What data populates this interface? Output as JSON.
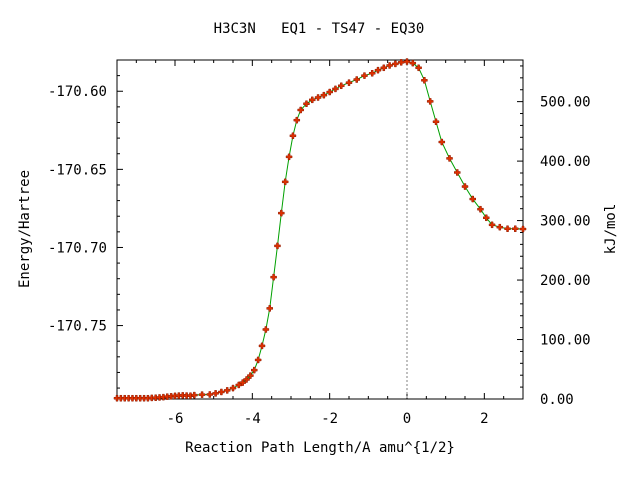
{
  "chart_data": {
    "type": "line",
    "title": "H3C3N   EQ1 - TS47 - EQ30",
    "xlabel": "Reaction Path Length/A amu^{1/2}",
    "ylabel": "Energy/Hartree",
    "y2label": "kJ/mol",
    "xlim": [
      -7.5,
      3.0
    ],
    "ylim": [
      -170.797,
      -170.58
    ],
    "y2lim": [
      0,
      570
    ],
    "x_ticks": [
      -6,
      -4,
      -2,
      0,
      2
    ],
    "x_tick_labels": [
      "-6",
      "-4",
      "-2",
      "0",
      "2"
    ],
    "y_ticks": [
      -170.6,
      -170.65,
      -170.7,
      -170.75
    ],
    "y_tick_labels": [
      "-170.60",
      "-170.65",
      "-170.70",
      "-170.75"
    ],
    "y2_ticks": [
      0,
      100,
      200,
      300,
      400,
      500
    ],
    "y2_tick_labels": [
      "0.00",
      "100.00",
      "200.00",
      "300.00",
      "400.00",
      "500.00"
    ],
    "ts_marker_x": 0,
    "colors": {
      "line": "#00a000",
      "marker": "#e03000",
      "ts_line": "#808080"
    },
    "series": [
      {
        "x": [
          -7.5,
          -7.4,
          -7.3,
          -7.2,
          -7.1,
          -7.0,
          -6.9,
          -6.8,
          -6.7,
          -6.6,
          -6.5,
          -6.4,
          -6.3,
          -6.2,
          -6.1,
          -6.0,
          -5.9,
          -5.8,
          -5.7,
          -5.6,
          -5.5,
          -5.3,
          -5.1,
          -4.95,
          -4.8,
          -4.65,
          -4.5,
          -4.35,
          -4.25,
          -4.15,
          -4.05,
          -3.95,
          -3.85,
          -3.75,
          -3.65,
          -3.55,
          -3.45,
          -3.35,
          -3.25,
          -3.15,
          -3.05,
          -2.95,
          -2.85,
          -2.75,
          -2.6,
          -2.45,
          -2.3,
          -2.15,
          -2.0,
          -1.85,
          -1.7,
          -1.5,
          -1.3,
          -1.1,
          -0.9,
          -0.75,
          -0.6,
          -0.45,
          -0.3,
          -0.15,
          0.0,
          0.15,
          0.3,
          0.45,
          0.6,
          0.75,
          0.9,
          1.1,
          1.3,
          1.5,
          1.7,
          1.9,
          2.05,
          2.2,
          2.4,
          2.6,
          2.8,
          3.0
        ],
        "y": [
          -170.7965,
          -170.7965,
          -170.7965,
          -170.7965,
          -170.7965,
          -170.7965,
          -170.7965,
          -170.7965,
          -170.7965,
          -170.7963,
          -170.7962,
          -170.796,
          -170.7958,
          -170.7955,
          -170.7953,
          -170.795,
          -170.7948,
          -170.7947,
          -170.7948,
          -170.7949,
          -170.7945,
          -170.7942,
          -170.7941,
          -170.7934,
          -170.7925,
          -170.7915,
          -170.79,
          -170.788,
          -170.7865,
          -170.7845,
          -170.782,
          -170.7785,
          -170.772,
          -170.763,
          -170.7525,
          -170.739,
          -170.719,
          -170.699,
          -170.678,
          -170.658,
          -170.642,
          -170.6285,
          -170.6185,
          -170.612,
          -170.608,
          -170.6055,
          -170.604,
          -170.6025,
          -170.6005,
          -170.5985,
          -170.5965,
          -170.5945,
          -170.5925,
          -170.59,
          -170.5885,
          -170.5865,
          -170.585,
          -170.5835,
          -170.5825,
          -170.5815,
          -170.581,
          -170.582,
          -170.585,
          -170.593,
          -170.6065,
          -170.6195,
          -170.6325,
          -170.643,
          -170.652,
          -170.661,
          -170.669,
          -170.6755,
          -170.681,
          -170.6855,
          -170.687,
          -170.688,
          -170.688,
          -170.6882
        ]
      }
    ]
  }
}
